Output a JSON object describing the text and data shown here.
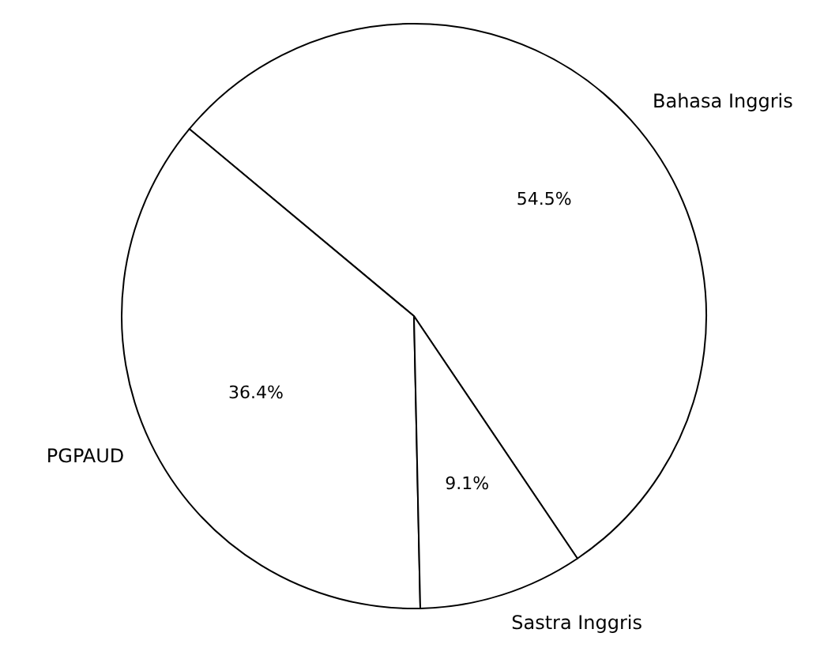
{
  "chart_data": {
    "type": "pie",
    "categories": [
      "Bahasa Inggris",
      "PGPAUD",
      "Sastra Inggris"
    ],
    "values": [
      54.5,
      36.4,
      9.1
    ],
    "value_labels": [
      "54.5%",
      "36.4%",
      "9.1%"
    ],
    "colors": [
      "#ffffff",
      "#ffffff",
      "#ffffff"
    ]
  }
}
